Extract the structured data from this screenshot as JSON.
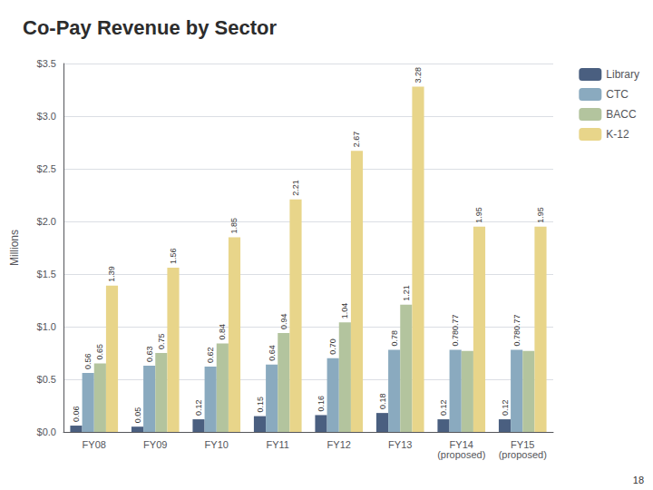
{
  "chart_data": {
    "type": "bar",
    "title": "Co-Pay Revenue by Sector",
    "ylabel": "Millions",
    "categories": [
      "FY08",
      "FY09",
      "FY10",
      "FY11",
      "FY12",
      "FY13",
      "FY14\n(proposed)",
      "FY15\n(proposed)"
    ],
    "series": [
      {
        "name": "Library",
        "color": "#4a5f80",
        "values": [
          0.06,
          0.05,
          0.12,
          0.15,
          0.16,
          0.18,
          0.12,
          0.12
        ],
        "value_labels": [
          "0.06",
          "0.05",
          "0.12",
          "0.15",
          "0.16",
          "0.18",
          "0.12",
          "0.12"
        ]
      },
      {
        "name": "CTC",
        "color": "#8aaabf",
        "values": [
          0.56,
          0.63,
          0.62,
          0.64,
          0.7,
          0.78,
          0.78,
          0.78
        ],
        "value_labels": [
          "0.56",
          "0.63",
          "0.62",
          "0.64",
          "0.70",
          "0.78",
          "0.780.77",
          "0.780.77"
        ]
      },
      {
        "name": "BACC",
        "color": "#b3c49e",
        "values": [
          0.65,
          0.75,
          0.84,
          0.94,
          1.04,
          1.21,
          0.77,
          0.77
        ],
        "value_labels": [
          "0.65",
          "0.75",
          "0.84",
          "0.94",
          "1.04",
          "1.21",
          null,
          null
        ]
      },
      {
        "name": "K-12",
        "color": "#e8d58a",
        "values": [
          1.39,
          1.56,
          1.85,
          2.21,
          2.67,
          3.28,
          1.95,
          1.95
        ],
        "value_labels": [
          "1.39",
          "1.56",
          "1.85",
          "2.21",
          "2.67",
          "3.28",
          "1.95",
          "1.95"
        ]
      }
    ],
    "ylim": [
      0,
      3.5
    ],
    "yticks": [
      {
        "value": 0.0,
        "label": "$0.0"
      },
      {
        "value": 0.5,
        "label": "$0.5"
      },
      {
        "value": 1.0,
        "label": "$1.0"
      },
      {
        "value": 1.5,
        "label": "$1.5"
      },
      {
        "value": 2.0,
        "label": "$2.0"
      },
      {
        "value": 2.5,
        "label": "$2.5"
      },
      {
        "value": 3.0,
        "label": "$3.0"
      },
      {
        "value": 3.5,
        "label": "$3.5"
      }
    ],
    "grid": true,
    "legend": "upper right",
    "data_labels": true,
    "annotations": [
      "18"
    ]
  }
}
